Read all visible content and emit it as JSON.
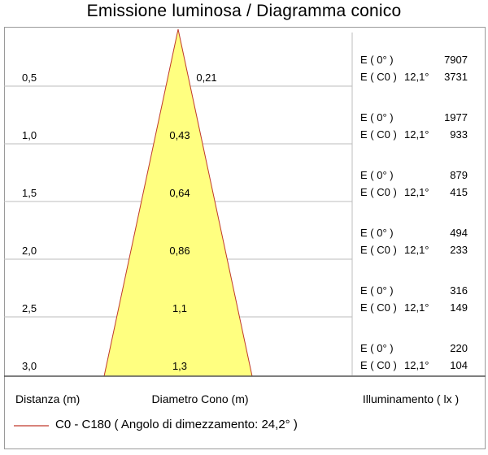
{
  "title": "Emissione luminosa  / Diagramma conico",
  "columns": {
    "distance": "Distanza (m)",
    "diameter": "Diametro Cono (m)",
    "illuminance": "Illuminamento ( lx )"
  },
  "legend": {
    "label": "C0 - C180  ( Angolo di dimezzamento: 24,2° )",
    "line_color": "#c0392b"
  },
  "labels": {
    "e0": "E ( 0° )",
    "ec0": "E ( C0 )",
    "angle": "12,1°"
  },
  "colors": {
    "cone_fill": "#ffff80",
    "cone_stroke": "#c0392b",
    "grid": "#bdbdbd"
  },
  "chart_data": {
    "type": "table",
    "rows": [
      {
        "distance": "0,5",
        "diameter": "0,21",
        "e0": "7907",
        "ec0": "3731"
      },
      {
        "distance": "1,0",
        "diameter": "0,43",
        "e0": "1977",
        "ec0": "933"
      },
      {
        "distance": "1,5",
        "diameter": "0,64",
        "e0": "879",
        "ec0": "415"
      },
      {
        "distance": "2,0",
        "diameter": "0,86",
        "e0": "494",
        "ec0": "233"
      },
      {
        "distance": "2,5",
        "diameter": "1,1",
        "e0": "316",
        "ec0": "149"
      },
      {
        "distance": "3,0",
        "diameter": "1,3",
        "e0": "220",
        "ec0": "104"
      }
    ]
  }
}
